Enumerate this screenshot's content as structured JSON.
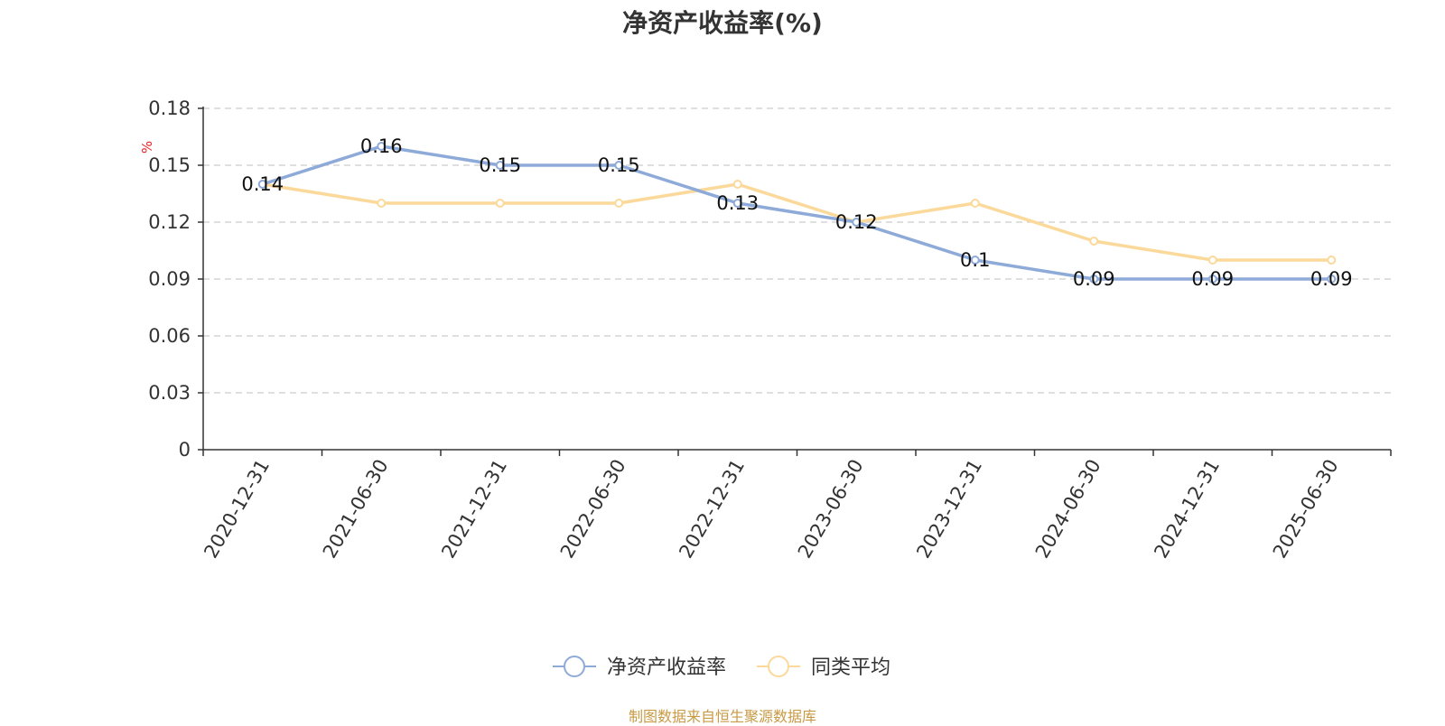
{
  "title": "净资产收益率(%)",
  "footer": "制图数据来自恒生聚源数据库",
  "chart_data": {
    "type": "line",
    "title": "净资产收益率(%)",
    "ylabel": "%",
    "ylim": [
      0,
      0.18
    ],
    "yticks": [
      "0",
      "0.03",
      "0.06",
      "0.09",
      "0.12",
      "0.15",
      "0.18"
    ],
    "grid": true,
    "legend_position": "bottom-center",
    "categories": [
      "2020-12-31",
      "2021-06-30",
      "2021-12-31",
      "2022-06-30",
      "2022-12-31",
      "2023-06-30",
      "2023-12-31",
      "2024-06-30",
      "2024-12-31",
      "2025-06-30"
    ],
    "series": [
      {
        "name": "净资产收益率",
        "color": "#8eaad8",
        "values": [
          0.14,
          0.16,
          0.15,
          0.15,
          0.13,
          0.12,
          0.1,
          0.09,
          0.09,
          0.09
        ],
        "labels": [
          "0.14",
          "0.16",
          "0.15",
          "0.15",
          "0.13",
          "0.12",
          "0.1",
          "0.09",
          "0.09",
          "0.09"
        ]
      },
      {
        "name": "同类平均",
        "color": "#fbd99a",
        "values": [
          0.14,
          0.13,
          0.13,
          0.13,
          0.14,
          0.12,
          0.13,
          0.11,
          0.1,
          0.1
        ]
      }
    ]
  }
}
